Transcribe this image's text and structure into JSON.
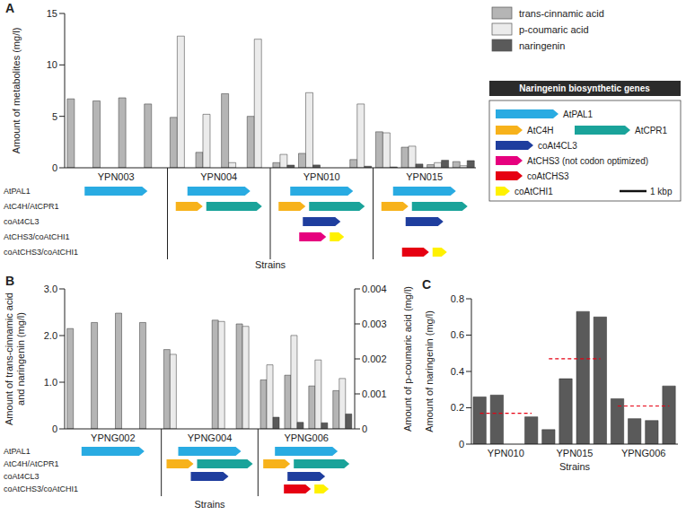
{
  "chart_data": [
    {
      "type": "bar",
      "panel_label": "A",
      "y_label": "Amount of metabolites (mg/l)",
      "x_label": "Strains",
      "categories": [
        null,
        "YPN003",
        null,
        null,
        null,
        "YPN004",
        null,
        null,
        null,
        "YPN010",
        null,
        null,
        null,
        "YPN015",
        null,
        null
      ],
      "series": [
        {
          "name": "trans-cinnamic acid",
          "color": "#b5b5b5",
          "values": [
            6.7,
            6.5,
            6.8,
            6.2,
            4.9,
            1.5,
            7.2,
            5.0,
            0.5,
            1.4,
            0,
            0.8,
            3.5,
            2.0,
            0.3,
            0.6
          ]
        },
        {
          "name": "p-coumaric acid",
          "color": "#ebebeb",
          "values": [
            0,
            0,
            0,
            0,
            12.8,
            5.2,
            0.5,
            12.5,
            1.3,
            7.3,
            0,
            6.2,
            3.4,
            2.1,
            0.5,
            0.2
          ]
        },
        {
          "name": "naringenin",
          "color": "#5a5a5a",
          "values": [
            0,
            0,
            0,
            0,
            0,
            0,
            0,
            0,
            0.26,
            0.27,
            0,
            0.15,
            0.08,
            0.36,
            0.73,
            0.7
          ]
        }
      ],
      "ylim": [
        0,
        15
      ],
      "yticks": [
        0,
        5,
        10,
        15
      ],
      "grid": false,
      "construct_rows": [
        {
          "label": "AtPAL1",
          "genes": [
            "AtPAL1"
          ]
        },
        {
          "label": "AtC4H/AtCPR1",
          "genes": [
            "AtC4H",
            "AtCPR1"
          ]
        },
        {
          "label": "coAt4CL3",
          "genes": [
            "coAt4CL3"
          ]
        },
        {
          "label": "AtCHS3/coAtCHI1",
          "genes": [
            "AtCHS3 (not codon optimized)",
            "coAtCHI1"
          ]
        },
        {
          "label": "coAtCHS3/coAtCHI1",
          "genes": [
            "coAtCHS3",
            "coAtCHI1"
          ]
        }
      ],
      "constructs": [
        [
          "AtPAL1"
        ],
        [
          "AtPAL1",
          "AtC4H/AtCPR1"
        ],
        [
          "AtPAL1",
          "AtC4H/AtCPR1",
          "coAt4CL3",
          "AtCHS3/coAtCHI1"
        ],
        [
          "AtPAL1",
          "AtC4H/AtCPR1",
          "coAt4CL3",
          "coAtCHS3/coAtCHI1"
        ]
      ]
    },
    {
      "type": "bar",
      "panel_label": "B",
      "y_label": [
        "Amount of trans-cinnamic acid",
        "and naringenin (mg/l)"
      ],
      "y2_label": "Amount of p-coumaric acid (mg/l)",
      "x_label": "Strains",
      "categories": [
        null,
        "YPNG002",
        null,
        null,
        null,
        "YPNG004",
        null,
        null,
        null,
        "YPNG006",
        null,
        null
      ],
      "series": [
        {
          "name": "trans-cinnamic acid",
          "color": "#b5b5b5",
          "values": [
            2.15,
            2.28,
            2.48,
            2.28,
            1.7,
            0,
            2.33,
            2.25,
            1.05,
            1.15,
            0.92,
            0.82
          ]
        },
        {
          "name": "p-coumaric acid",
          "color": "#ebebeb",
          "axis": "y2",
          "values": [
            0,
            0,
            0,
            0,
            0.00213,
            0,
            0.00307,
            0.00293,
            0.00183,
            0.00267,
            0.00197,
            0.00144
          ]
        },
        {
          "name": "naringenin",
          "color": "#5a5a5a",
          "values": [
            0,
            0,
            0,
            0,
            0,
            0,
            0,
            0,
            0.25,
            0.14,
            0.13,
            0.32
          ]
        }
      ],
      "ylim": [
        0,
        3
      ],
      "yticks": [
        0,
        {
          "value": 1,
          "label": "1.0"
        },
        {
          "value": 2,
          "label": "2.0"
        },
        {
          "value": 3,
          "label": "3.0"
        }
      ],
      "y2lim": [
        0,
        0.004
      ],
      "y2ticks": [
        0,
        0.001,
        0.002,
        0.003,
        0.004
      ],
      "grid": false,
      "construct_rows": [
        {
          "label": "AtPAL1",
          "genes": [
            "AtPAL1"
          ]
        },
        {
          "label": "AtC4H/AtCPR1",
          "genes": [
            "AtC4H",
            "AtCPR1"
          ]
        },
        {
          "label": "coAt4CL3",
          "genes": [
            "coAt4CL3"
          ]
        },
        {
          "label": "coAtCHS3/coAtCHI1",
          "genes": [
            "coAtCHS3",
            "coAtCHI1"
          ]
        }
      ],
      "constructs": [
        [
          "AtPAL1"
        ],
        [
          "AtPAL1",
          "AtC4H/AtCPR1",
          "coAt4CL3"
        ],
        [
          "AtPAL1",
          "AtC4H/AtCPR1",
          "coAt4CL3",
          "coAtCHS3/coAtCHI1"
        ]
      ]
    },
    {
      "type": "bar",
      "panel_label": "C",
      "y_label": "Amount of naringenin (mg/l)",
      "x_label": "Strains",
      "categories": [
        null,
        "YPN010",
        null,
        null,
        null,
        "YPN015",
        null,
        null,
        null,
        "YPNG006",
        null,
        null
      ],
      "values": [
        0.26,
        0.27,
        0,
        0.15,
        0.08,
        0.36,
        0.73,
        0.7,
        0.25,
        0.14,
        0.13,
        0.32
      ],
      "color": "#5a5a5a",
      "means": [
        0.17,
        0.47,
        0.21
      ],
      "ylim": [
        0,
        0.8
      ],
      "yticks": [
        0,
        0.2,
        0.4,
        0.6,
        0.8
      ],
      "grid": false
    }
  ],
  "gene_legend": {
    "title": "Naringenin biosynthetic genes",
    "scale": "1 kbp",
    "genes": [
      {
        "name": "AtPAL1",
        "color": "#29abe2"
      },
      {
        "name": "AtC4H",
        "color": "#f7b21b"
      },
      {
        "name": "AtCPR1",
        "color": "#1aa39a"
      },
      {
        "name": "coAt4CL3",
        "color": "#1f3e9e"
      },
      {
        "name": "AtCHS3 (not codon optimized)",
        "color": "#e6007e"
      },
      {
        "name": "coAtCHS3",
        "color": "#e60012"
      },
      {
        "name": "coAtCHI1",
        "color": "#fff100"
      }
    ]
  }
}
